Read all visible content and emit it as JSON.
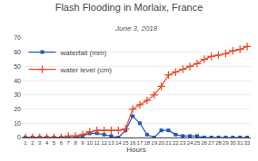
{
  "chart_data": {
    "type": "line",
    "title": "Flash Flooding in Morlaix, France",
    "subtitle": "June 3, 2018",
    "xlabel": "Hours",
    "x": [
      1,
      2,
      3,
      4,
      5,
      6,
      7,
      8,
      9,
      10,
      11,
      12,
      13,
      14,
      15,
      16,
      17,
      18,
      19,
      20,
      21,
      22,
      23,
      24,
      25,
      26,
      27,
      28,
      29,
      30,
      31,
      32
    ],
    "series": [
      {
        "name": "waterfall (mm)",
        "color": "#2255bb",
        "marker": "square",
        "values": [
          0,
          0,
          0,
          0,
          0,
          0,
          0,
          0,
          1,
          3,
          3,
          2,
          1,
          0,
          5,
          15,
          10,
          2,
          0,
          5,
          5,
          2,
          1,
          1,
          1,
          0,
          0,
          0,
          0,
          0,
          0,
          0
        ]
      },
      {
        "name": "water level (cm)",
        "color": "#ee4422",
        "marker": "plus",
        "values": [
          0,
          0,
          0,
          0,
          0,
          0,
          1,
          1,
          2,
          4,
          5,
          5,
          5,
          5,
          6,
          20,
          23,
          26,
          30,
          36,
          44,
          46,
          48,
          50,
          52,
          55,
          57,
          58,
          59,
          61,
          62,
          64
        ]
      }
    ],
    "xlim": [
      0.5,
      32.5
    ],
    "xticks": [
      1,
      2,
      3,
      4,
      5,
      6,
      7,
      8,
      9,
      10,
      11,
      12,
      13,
      14,
      15,
      16,
      17,
      18,
      19,
      20,
      21,
      22,
      23,
      24,
      25,
      26,
      27,
      28,
      29,
      30,
      31,
      32
    ],
    "ylim": [
      0,
      70
    ],
    "yticks": [
      0,
      10,
      20,
      30,
      40,
      50,
      60,
      70
    ],
    "grid": true,
    "legend": "upper left"
  }
}
